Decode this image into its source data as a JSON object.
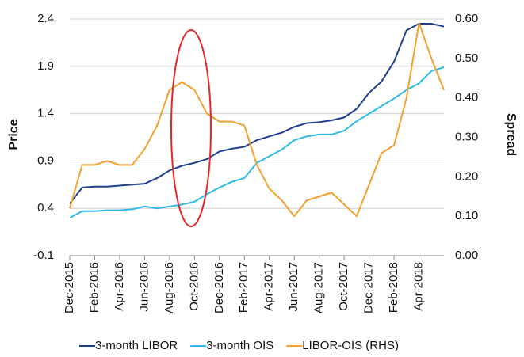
{
  "chart_data": {
    "type": "line",
    "y_label": "Price",
    "y2_label": "Spread",
    "categories": [
      "Dec-2015",
      null,
      "Feb-2016",
      null,
      "Apr-2016",
      null,
      "Jun-2016",
      null,
      "Aug-2016",
      null,
      "Oct-2016",
      null,
      "Dec-2016",
      null,
      "Feb-2017",
      null,
      "Apr-2017",
      null,
      "Jun-2017",
      null,
      "Aug-2017",
      null,
      "Oct-2017",
      null,
      "Dec-2017",
      null,
      "Feb-2018",
      null,
      "Apr-2018",
      null,
      null
    ],
    "series": [
      {
        "name": "3-month LIBOR",
        "color": "#1f3f8f",
        "values": [
          0.45,
          0.62,
          0.63,
          0.63,
          0.64,
          0.65,
          0.66,
          0.72,
          0.8,
          0.85,
          0.88,
          0.92,
          1.0,
          1.03,
          1.05,
          1.12,
          1.16,
          1.2,
          1.26,
          1.3,
          1.31,
          1.33,
          1.36,
          1.45,
          1.62,
          1.74,
          1.95,
          2.28,
          2.35,
          2.35,
          2.32
        ]
      },
      {
        "name": "3-month OIS",
        "color": "#2dbbe8",
        "values": [
          0.3,
          0.37,
          0.37,
          0.38,
          0.38,
          0.39,
          0.42,
          0.4,
          0.42,
          0.44,
          0.47,
          0.55,
          0.62,
          0.68,
          0.72,
          0.88,
          0.95,
          1.02,
          1.12,
          1.16,
          1.18,
          1.18,
          1.22,
          1.32,
          1.4,
          1.48,
          1.56,
          1.65,
          1.72,
          1.85,
          1.89
        ]
      },
      {
        "name": "LIBOR-OIS (RHS)",
        "color": "#f5a030",
        "axis": "y2",
        "values": [
          0.12,
          0.23,
          0.23,
          0.24,
          0.23,
          0.23,
          0.27,
          0.33,
          0.42,
          0.44,
          0.42,
          0.36,
          0.34,
          0.34,
          0.33,
          0.23,
          0.17,
          0.14,
          0.1,
          0.14,
          0.15,
          0.16,
          0.13,
          0.1,
          0.18,
          0.26,
          0.28,
          0.4,
          0.59,
          0.5,
          0.42
        ]
      }
    ],
    "ylim": [
      -0.1,
      2.4
    ],
    "yticks": [
      -0.1,
      0.4,
      0.9,
      1.4,
      1.9,
      2.4
    ],
    "y2lim": [
      0,
      0.6
    ],
    "y2ticks": [
      {
        "value": 0,
        "label": "0.00"
      },
      {
        "value": 0.1,
        "label": "0.10"
      },
      {
        "value": 0.2,
        "label": "0.20"
      },
      {
        "value": 0.3,
        "label": "0.30"
      },
      {
        "value": 0.4,
        "label": "0.40"
      },
      {
        "value": 0.5,
        "label": "0.50"
      },
      {
        "value": 0.6,
        "label": "0.60"
      }
    ],
    "grid": true,
    "legend": "bottom"
  }
}
